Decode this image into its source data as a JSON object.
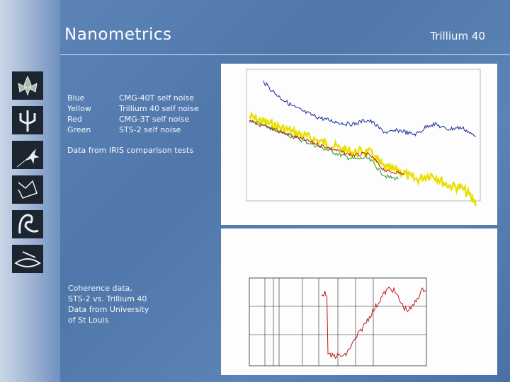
{
  "header": {
    "title": "Nanometrics",
    "subtitle": "Trillium 40"
  },
  "legend": {
    "rows": [
      [
        "Blue",
        "CMG-40T self noise"
      ],
      [
        "Yellow",
        "Trillium 40 self noise"
      ],
      [
        "Red",
        "CMG-3T self noise"
      ],
      [
        "Green",
        "STS-2 self noise"
      ]
    ]
  },
  "notes": [
    "Data from IRIS comparison tests"
  ],
  "coherence_note": [
    "Coherence data,",
    "STS-2 vs. Trillium 40",
    "Data from University",
    "of St Louis"
  ]
}
